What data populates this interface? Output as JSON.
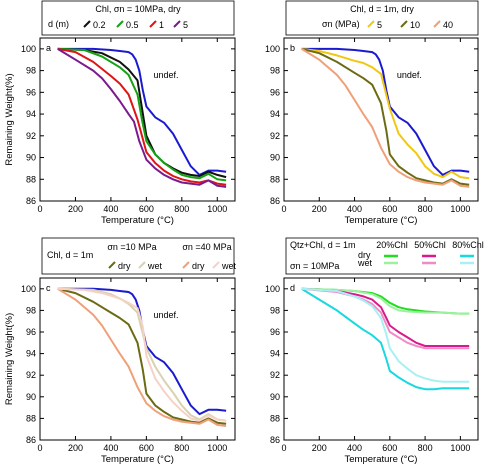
{
  "chart_data": [
    {
      "type": "line",
      "panel_label": "a",
      "legend_title": "Chl, σn = 10MPa, dry",
      "legend_row2_prefix": "d (m)",
      "xlabel": "Temperature (°C)",
      "ylabel": "Remaining Weight(%)",
      "xlim": [
        0,
        1100
      ],
      "ylim": [
        86,
        101
      ],
      "xticks": [
        0,
        200,
        400,
        600,
        800,
        1000
      ],
      "yticks": [
        86,
        88,
        90,
        92,
        94,
        96,
        98,
        100
      ],
      "annotation": "undef.",
      "series": [
        {
          "name": "undef.",
          "color": "#1a1ad0",
          "legend": false,
          "x": [
            100,
            300,
            400,
            450,
            500,
            520,
            540,
            560,
            580,
            600,
            650,
            700,
            750,
            800,
            850,
            900,
            950,
            1000,
            1050
          ],
          "y": [
            100,
            100,
            99.9,
            99.8,
            99.7,
            99.5,
            99.0,
            98.0,
            96.2,
            94.7,
            93.7,
            93.2,
            92.2,
            90.7,
            89.2,
            88.4,
            88.8,
            88.8,
            88.7
          ]
        },
        {
          "name": "0.2",
          "color": "#111111",
          "legend": true,
          "x": [
            100,
            250,
            350,
            450,
            500,
            550,
            600,
            650,
            700,
            750,
            800,
            850,
            900,
            950,
            1000,
            1050
          ],
          "y": [
            100,
            99.9,
            99.6,
            98.8,
            98.1,
            97.1,
            92.0,
            90.3,
            89.5,
            89.0,
            88.6,
            88.4,
            88.3,
            88.7,
            88.4,
            88.2
          ]
        },
        {
          "name": "0.5",
          "color": "#14a114",
          "legend": true,
          "x": [
            100,
            250,
            350,
            450,
            500,
            550,
            575,
            600,
            650,
            700,
            750,
            800,
            850,
            900,
            950,
            1000,
            1050
          ],
          "y": [
            100,
            99.9,
            99.3,
            98.3,
            97.6,
            95.8,
            93.5,
            91.5,
            90.3,
            89.5,
            88.9,
            88.4,
            88.2,
            88.1,
            88.5,
            88.0,
            87.9
          ]
        },
        {
          "name": "1",
          "color": "#e01414",
          "legend": true,
          "x": [
            100,
            200,
            300,
            400,
            450,
            500,
            550,
            600,
            650,
            700,
            750,
            800,
            850,
            900,
            950,
            1000,
            1050
          ],
          "y": [
            100,
            99.7,
            98.8,
            97.5,
            96.8,
            95.8,
            93.5,
            90.5,
            89.5,
            88.8,
            88.3,
            88.0,
            87.8,
            87.7,
            87.9,
            87.6,
            87.5
          ]
        },
        {
          "name": "5",
          "color": "#7a1a8c",
          "legend": true,
          "x": [
            100,
            200,
            300,
            350,
            400,
            450,
            500,
            530,
            560,
            600,
            650,
            700,
            750,
            800,
            850,
            900,
            950,
            1000,
            1050
          ],
          "y": [
            100,
            99.0,
            98.0,
            97.3,
            96.3,
            95.2,
            94.0,
            93.3,
            91.5,
            89.8,
            89.0,
            88.4,
            88.0,
            87.7,
            87.6,
            87.5,
            87.9,
            87.4,
            87.3
          ]
        }
      ]
    },
    {
      "type": "line",
      "panel_label": "b",
      "legend_title": "Chl, d = 1m, dry",
      "legend_row2_prefix": "σn (MPa)",
      "xlabel": "Temperature (°C)",
      "ylabel": "",
      "xlim": [
        0,
        1100
      ],
      "ylim": [
        86,
        101
      ],
      "xticks": [
        0,
        200,
        400,
        600,
        800,
        1000
      ],
      "yticks": [
        86,
        88,
        90,
        92,
        94,
        96,
        98,
        100
      ],
      "annotation": "undef.",
      "series": [
        {
          "name": "undef.",
          "color": "#1a1ad0",
          "legend": false,
          "x": [
            100,
            300,
            400,
            450,
            500,
            520,
            540,
            560,
            580,
            600,
            650,
            700,
            750,
            800,
            850,
            900,
            950,
            1000,
            1050
          ],
          "y": [
            100,
            100,
            99.9,
            99.8,
            99.7,
            99.5,
            99.0,
            98.0,
            96.2,
            94.7,
            93.7,
            93.2,
            92.2,
            90.7,
            89.2,
            88.4,
            88.8,
            88.8,
            88.7
          ]
        },
        {
          "name": "5",
          "color": "#f0c814",
          "legend": true,
          "x": [
            100,
            200,
            300,
            400,
            450,
            500,
            550,
            600,
            650,
            700,
            750,
            800,
            850,
            900,
            950,
            1000,
            1050
          ],
          "y": [
            100,
            99.8,
            99.4,
            98.9,
            98.7,
            98.3,
            97.7,
            94.5,
            92.2,
            91.2,
            90.4,
            89.2,
            88.5,
            88.2,
            88.7,
            88.2,
            88.1
          ]
        },
        {
          "name": "10",
          "color": "#6b6b14",
          "legend": true,
          "x": [
            100,
            200,
            300,
            400,
            450,
            500,
            550,
            580,
            600,
            650,
            700,
            750,
            800,
            850,
            900,
            950,
            1000,
            1050
          ],
          "y": [
            100,
            99.6,
            98.8,
            97.8,
            97.3,
            96.7,
            95.0,
            92.5,
            90.3,
            89.2,
            88.6,
            88.1,
            87.9,
            87.7,
            87.6,
            88.0,
            87.6,
            87.5
          ]
        },
        {
          "name": "40",
          "color": "#f0a078",
          "legend": true,
          "x": [
            100,
            200,
            300,
            350,
            400,
            450,
            500,
            550,
            600,
            650,
            700,
            750,
            800,
            850,
            900,
            950,
            1000,
            1050
          ],
          "y": [
            100,
            99.0,
            97.6,
            96.6,
            95.3,
            94.0,
            92.8,
            90.9,
            89.4,
            88.7,
            88.2,
            87.9,
            87.7,
            87.6,
            87.5,
            87.9,
            87.4,
            87.3
          ]
        }
      ]
    },
    {
      "type": "line",
      "panel_label": "c",
      "legend_title": "Chl, d = 1m",
      "legend_group1": "σn =10 MPa",
      "legend_group2": "σn =40 MPa",
      "legend_dry": "dry",
      "legend_wet": "wet",
      "xlabel": "Temperature (°C)",
      "ylabel": "Remaining Weight(%)",
      "xlim": [
        0,
        1100
      ],
      "ylim": [
        86,
        101
      ],
      "xticks": [
        0,
        200,
        400,
        600,
        800,
        1000
      ],
      "yticks": [
        86,
        88,
        90,
        92,
        94,
        96,
        98,
        100
      ],
      "annotation": "undef.",
      "series": [
        {
          "name": "undef.",
          "color": "#1a1ad0",
          "x": [
            100,
            300,
            400,
            450,
            500,
            520,
            540,
            560,
            580,
            600,
            650,
            700,
            750,
            800,
            850,
            900,
            950,
            1000,
            1050
          ],
          "y": [
            100,
            100,
            99.9,
            99.8,
            99.7,
            99.5,
            99.0,
            98.0,
            96.2,
            94.7,
            93.7,
            93.2,
            92.2,
            90.7,
            89.2,
            88.4,
            88.8,
            88.8,
            88.7
          ]
        },
        {
          "name": "10 MPa dry",
          "color": "#6b6b14",
          "x": [
            100,
            200,
            300,
            400,
            450,
            500,
            550,
            580,
            600,
            650,
            700,
            750,
            800,
            850,
            900,
            950,
            1000,
            1050
          ],
          "y": [
            100,
            99.6,
            98.8,
            97.8,
            97.3,
            96.7,
            95.0,
            92.5,
            90.3,
            89.2,
            88.6,
            88.1,
            87.9,
            87.7,
            87.6,
            88.0,
            87.6,
            87.5
          ]
        },
        {
          "name": "10 MPa wet",
          "color": "#d8d2b0",
          "x": [
            100,
            300,
            400,
            450,
            500,
            550,
            600,
            650,
            700,
            750,
            800,
            850,
            900,
            950,
            1000,
            1050
          ],
          "y": [
            100,
            99.9,
            99.5,
            99.1,
            98.6,
            97.8,
            94.5,
            92.8,
            91.5,
            90.4,
            89.2,
            88.3,
            87.9,
            88.4,
            87.9,
            87.8
          ]
        },
        {
          "name": "40 MPa dry",
          "color": "#f0a078",
          "x": [
            100,
            200,
            300,
            350,
            400,
            450,
            500,
            550,
            600,
            650,
            700,
            750,
            800,
            850,
            900,
            950,
            1000,
            1050
          ],
          "y": [
            100,
            99.0,
            97.6,
            96.6,
            95.3,
            94.0,
            92.8,
            90.9,
            89.4,
            88.7,
            88.2,
            87.9,
            87.7,
            87.6,
            87.5,
            87.9,
            87.4,
            87.3
          ]
        },
        {
          "name": "40 MPa wet",
          "color": "#f6d2c6",
          "x": [
            100,
            250,
            350,
            450,
            500,
            550,
            580,
            600,
            650,
            700,
            750,
            800,
            850,
            900,
            950,
            1000,
            1050
          ],
          "y": [
            100,
            99.9,
            99.6,
            99.1,
            98.7,
            98.2,
            96.5,
            93.8,
            91.7,
            90.5,
            89.5,
            88.7,
            88.0,
            87.8,
            88.3,
            87.9,
            87.8
          ]
        }
      ]
    },
    {
      "type": "line",
      "panel_label": "d",
      "legend_title": "Qtz+Chl, d = 1m",
      "legend_title2": "σn = 10MPa",
      "legend_dry": "dry",
      "legend_wet": "wet",
      "legend_groups": [
        "20%Chl",
        "50%Chl",
        "80%Chl"
      ],
      "xlabel": "Temperature (°C)",
      "ylabel": "",
      "xlim": [
        0,
        1100
      ],
      "ylim": [
        86,
        101
      ],
      "xticks": [
        0,
        200,
        400,
        600,
        800,
        1000
      ],
      "yticks": [
        86,
        88,
        90,
        92,
        94,
        96,
        98,
        100
      ],
      "series": [
        {
          "name": "20%Chl dry",
          "color": "#22dd22",
          "x": [
            100,
            300,
            400,
            500,
            550,
            600,
            650,
            700,
            800,
            900,
            1000,
            1050
          ],
          "y": [
            100,
            99.9,
            99.8,
            99.6,
            99.3,
            98.7,
            98.3,
            98.1,
            97.9,
            97.8,
            97.7,
            97.7
          ]
        },
        {
          "name": "20%Chl wet",
          "color": "#9ef09e",
          "x": [
            100,
            300,
            400,
            500,
            550,
            600,
            650,
            700,
            800,
            900,
            1000,
            1050
          ],
          "y": [
            100,
            99.9,
            99.8,
            99.5,
            99.1,
            98.4,
            98.0,
            97.9,
            97.8,
            97.8,
            97.7,
            97.7
          ]
        },
        {
          "name": "50%Chl dry",
          "color": "#d81b8c",
          "x": [
            100,
            300,
            400,
            450,
            500,
            550,
            580,
            600,
            650,
            700,
            750,
            800,
            900,
            1000,
            1050
          ],
          "y": [
            100,
            99.8,
            99.5,
            99.3,
            99.0,
            98.3,
            97.3,
            96.6,
            96.0,
            95.5,
            95.0,
            94.7,
            94.7,
            94.7,
            94.7
          ]
        },
        {
          "name": "50%Chl wet",
          "color": "#f08cc4",
          "x": [
            100,
            300,
            400,
            450,
            500,
            550,
            580,
            600,
            650,
            700,
            750,
            800,
            900,
            1000,
            1050
          ],
          "y": [
            100,
            99.7,
            99.3,
            99.0,
            98.6,
            97.8,
            96.7,
            96.0,
            95.5,
            95.0,
            94.7,
            94.5,
            94.5,
            94.5,
            94.5
          ]
        },
        {
          "name": "80%Chl dry",
          "color": "#18d8e0",
          "x": [
            100,
            200,
            300,
            400,
            450,
            500,
            550,
            580,
            600,
            650,
            700,
            750,
            800,
            850,
            900,
            1000,
            1050
          ],
          "y": [
            100,
            99.0,
            98.0,
            96.8,
            96.2,
            95.7,
            95.0,
            93.5,
            92.4,
            91.8,
            91.3,
            90.9,
            90.7,
            90.7,
            90.8,
            90.8,
            90.8
          ]
        },
        {
          "name": "80%Chl wet",
          "color": "#a8f0f4",
          "x": [
            100,
            300,
            400,
            450,
            500,
            550,
            580,
            600,
            650,
            700,
            750,
            800,
            850,
            900,
            1000,
            1050
          ],
          "y": [
            100,
            99.8,
            99.3,
            98.9,
            98.4,
            97.3,
            95.8,
            94.5,
            93.3,
            92.6,
            92.0,
            91.7,
            91.5,
            91.4,
            91.4,
            91.4
          ]
        }
      ]
    }
  ]
}
